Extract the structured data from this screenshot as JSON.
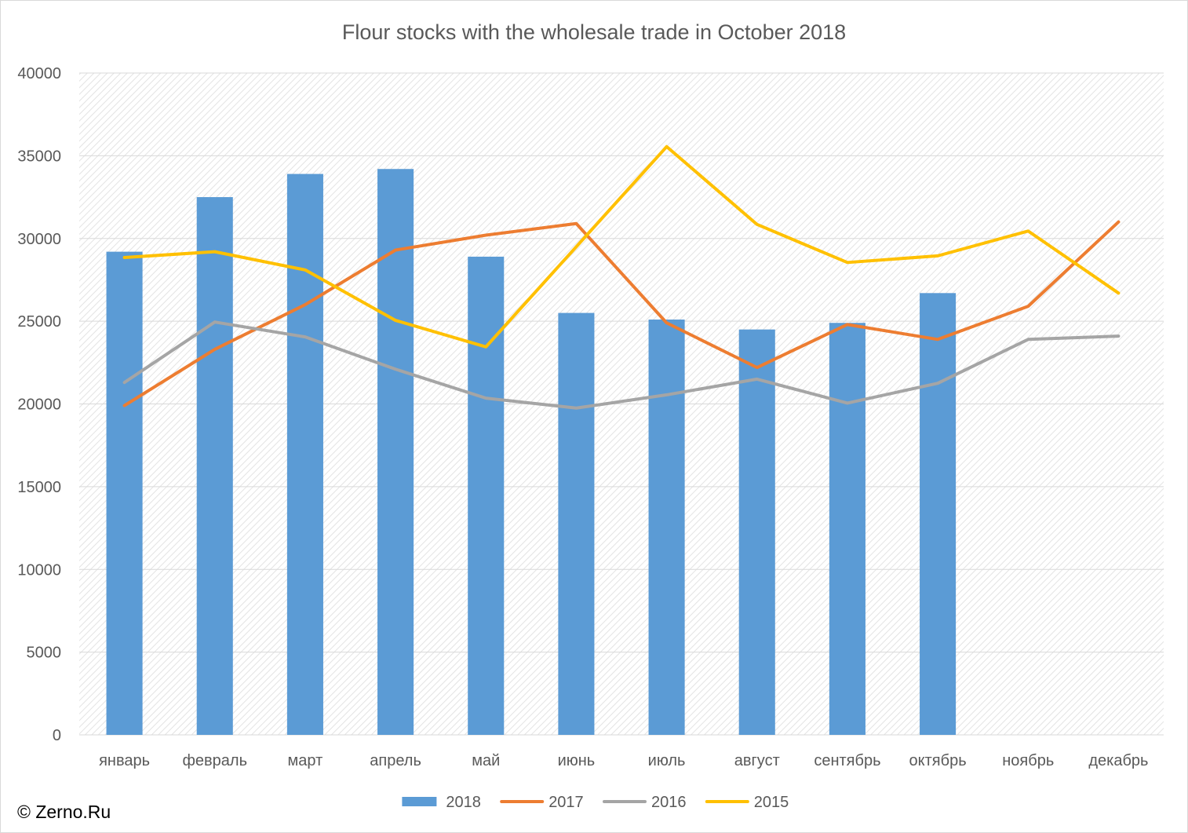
{
  "watermark": "© Zerno.Ru",
  "chart_data": {
    "type": "bar",
    "title": "Flour stocks with the wholesale trade in October 2018",
    "xlabel": "",
    "ylabel": "",
    "ylim": [
      0,
      40000
    ],
    "yticks": [
      0,
      5000,
      10000,
      15000,
      20000,
      25000,
      30000,
      35000,
      40000
    ],
    "grid": true,
    "legend_position": "bottom",
    "categories": [
      "январь",
      "февраль",
      "март",
      "апрель",
      "май",
      "июнь",
      "июль",
      "август",
      "сентябрь",
      "октябрь",
      "ноябрь",
      "декабрь"
    ],
    "series": [
      {
        "name": "2018",
        "kind": "bar",
        "color": "#5b9bd5",
        "values": [
          29200,
          32500,
          33900,
          34200,
          28900,
          25500,
          25100,
          24500,
          24900,
          26700,
          null,
          null
        ]
      },
      {
        "name": "2017",
        "kind": "line",
        "color": "#ed7d31",
        "values": [
          19900,
          23300,
          26000,
          29300,
          30200,
          30900,
          24900,
          22200,
          24800,
          23900,
          25900,
          31000
        ]
      },
      {
        "name": "2016",
        "kind": "line",
        "color": "#a5a5a5",
        "values": [
          21300,
          24950,
          24050,
          22100,
          20350,
          19750,
          20550,
          21500,
          20050,
          21250,
          23900,
          24100
        ]
      },
      {
        "name": "2015",
        "kind": "line",
        "color": "#ffc000",
        "values": [
          28850,
          29200,
          28100,
          25050,
          23450,
          29500,
          35550,
          30850,
          28550,
          28950,
          30450,
          26700
        ]
      }
    ]
  }
}
